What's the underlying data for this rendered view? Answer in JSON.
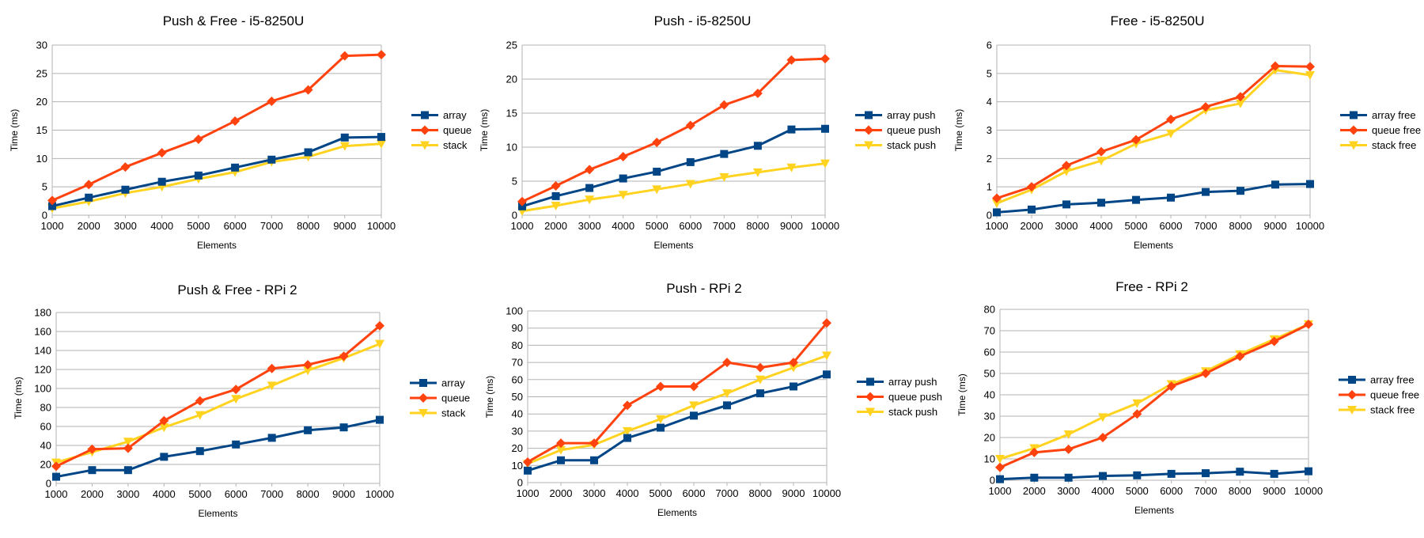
{
  "colors": {
    "array": "#004586",
    "queue": "#ff420e",
    "stack": "#ffd320",
    "grid": "#b3b3b3",
    "axis": "#b3b3b3"
  },
  "chart_data": [
    {
      "type": "line",
      "title": "Push & Free - i5-8250U",
      "xlabel": "Elements",
      "ylabel": "Time (ms)",
      "categories": [
        "1000",
        "2000",
        "3000",
        "4000",
        "5000",
        "6000",
        "7000",
        "8000",
        "9000",
        "10000"
      ],
      "ylim": [
        0,
        30
      ],
      "yticks": [
        "0",
        "5",
        "10",
        "15",
        "20",
        "25",
        "30"
      ],
      "legend_position": "right",
      "grid": true,
      "series": [
        {
          "name": "array",
          "marker": "square",
          "values": [
            1.6,
            3.1,
            4.5,
            5.9,
            7.0,
            8.4,
            9.8,
            11.1,
            13.7,
            13.8
          ]
        },
        {
          "name": "queue",
          "marker": "diamond",
          "values": [
            2.6,
            5.4,
            8.5,
            11.0,
            13.4,
            16.6,
            20.1,
            22.1,
            28.1,
            28.3
          ]
        },
        {
          "name": "stack",
          "marker": "triangle",
          "values": [
            1.2,
            2.4,
            3.9,
            5.0,
            6.4,
            7.6,
            9.4,
            10.3,
            12.2,
            12.6
          ]
        }
      ]
    },
    {
      "type": "line",
      "title": "Push  - i5-8250U",
      "xlabel": "Elements",
      "ylabel": "Time (ms)",
      "categories": [
        "1000",
        "2000",
        "3000",
        "4000",
        "5000",
        "6000",
        "7000",
        "8000",
        "9000",
        "10000"
      ],
      "ylim": [
        0,
        25
      ],
      "yticks": [
        "0",
        "5",
        "10",
        "15",
        "20",
        "25"
      ],
      "legend_position": "right",
      "grid": true,
      "series": [
        {
          "name": "array push",
          "marker": "square",
          "values": [
            1.3,
            2.8,
            4.0,
            5.4,
            6.4,
            7.8,
            9.0,
            10.2,
            12.6,
            12.7
          ]
        },
        {
          "name": "queue push",
          "marker": "diamond",
          "values": [
            2.0,
            4.3,
            6.7,
            8.6,
            10.7,
            13.2,
            16.2,
            17.9,
            22.8,
            23.0
          ]
        },
        {
          "name": "stack push",
          "marker": "triangle",
          "values": [
            0.6,
            1.4,
            2.3,
            3.0,
            3.8,
            4.6,
            5.6,
            6.3,
            7.0,
            7.6
          ]
        }
      ]
    },
    {
      "type": "line",
      "title": "Free - i5-8250U",
      "xlabel": "Elements",
      "ylabel": "Time (ms)",
      "categories": [
        "1000",
        "2000",
        "3000",
        "4000",
        "5000",
        "6000",
        "7000",
        "8000",
        "9000",
        "10000"
      ],
      "ylim": [
        0,
        6
      ],
      "yticks": [
        "0",
        "1",
        "2",
        "3",
        "4",
        "5",
        "6"
      ],
      "legend_position": "right",
      "grid": true,
      "series": [
        {
          "name": "array free",
          "marker": "square",
          "values": [
            0.1,
            0.2,
            0.38,
            0.44,
            0.54,
            0.62,
            0.82,
            0.86,
            1.08,
            1.1
          ]
        },
        {
          "name": "queue free",
          "marker": "diamond",
          "values": [
            0.6,
            1.0,
            1.75,
            2.24,
            2.66,
            3.38,
            3.82,
            4.18,
            5.26,
            5.24
          ]
        },
        {
          "name": "stack free",
          "marker": "triangle",
          "values": [
            0.42,
            0.9,
            1.55,
            1.92,
            2.52,
            2.88,
            3.7,
            3.94,
            5.12,
            4.94
          ]
        }
      ]
    },
    {
      "type": "line",
      "title": "Push & Free - RPi 2",
      "xlabel": "Elements",
      "ylabel": "Time (ms)",
      "categories": [
        "1000",
        "2000",
        "3000",
        "4000",
        "5000",
        "6000",
        "7000",
        "8000",
        "9000",
        "10000"
      ],
      "ylim": [
        0,
        180
      ],
      "yticks": [
        "0",
        "20",
        "40",
        "60",
        "80",
        "100",
        "120",
        "140",
        "160",
        "180"
      ],
      "legend_position": "right",
      "grid": true,
      "series": [
        {
          "name": "array",
          "marker": "square",
          "values": [
            7,
            14,
            14,
            28,
            34,
            41,
            48,
            56,
            59,
            67
          ]
        },
        {
          "name": "queue",
          "marker": "diamond",
          "values": [
            18,
            36,
            37,
            66,
            87,
            99,
            121,
            125,
            134,
            166
          ]
        },
        {
          "name": "stack",
          "marker": "triangle",
          "values": [
            22,
            33,
            44,
            59,
            72,
            89,
            103,
            119,
            132,
            147
          ]
        }
      ]
    },
    {
      "type": "line",
      "title": "Push - RPi 2",
      "xlabel": "Elements",
      "ylabel": "Time (ms)",
      "categories": [
        "1000",
        "2000",
        "3000",
        "4000",
        "5000",
        "6000",
        "7000",
        "8000",
        "9000",
        "10000"
      ],
      "ylim": [
        0,
        100
      ],
      "yticks": [
        "0",
        "10",
        "20",
        "30",
        "40",
        "50",
        "60",
        "70",
        "80",
        "90",
        "100"
      ],
      "legend_position": "right",
      "grid": true,
      "series": [
        {
          "name": "array push",
          "marker": "square",
          "values": [
            7,
            13,
            13,
            26,
            32,
            39,
            45,
            52,
            56,
            63
          ]
        },
        {
          "name": "queue push",
          "marker": "diamond",
          "values": [
            12,
            23,
            23,
            45,
            56,
            56,
            70,
            67,
            70,
            93
          ]
        },
        {
          "name": "stack push",
          "marker": "triangle",
          "values": [
            11,
            19,
            22,
            30,
            37,
            45,
            52,
            60,
            67,
            74
          ]
        }
      ]
    },
    {
      "type": "line",
      "title": "Free - RPi 2",
      "xlabel": "Elements",
      "ylabel": "Time (ms)",
      "categories": [
        "1000",
        "2000",
        "3000",
        "4000",
        "5000",
        "6000",
        "7000",
        "8000",
        "9000",
        "10000"
      ],
      "ylim": [
        0,
        80
      ],
      "yticks": [
        "0",
        "10",
        "20",
        "30",
        "40",
        "50",
        "60",
        "70",
        "80"
      ],
      "legend_position": "right",
      "grid": true,
      "series": [
        {
          "name": "array free",
          "marker": "square",
          "values": [
            0.5,
            1.2,
            1.2,
            2.0,
            2.3,
            3.0,
            3.3,
            4.0,
            3.0,
            4.2
          ]
        },
        {
          "name": "queue free",
          "marker": "diamond",
          "values": [
            6,
            13,
            14.5,
            20,
            31,
            44,
            50,
            58,
            65,
            73
          ]
        },
        {
          "name": "stack free",
          "marker": "triangle",
          "values": [
            10,
            15,
            21.5,
            29.5,
            36,
            45,
            51,
            59,
            66,
            73
          ]
        }
      ]
    }
  ]
}
